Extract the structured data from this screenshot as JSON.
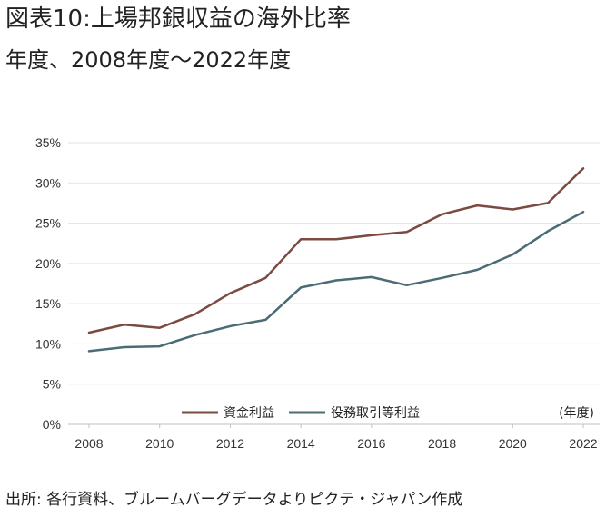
{
  "header": {
    "title": "図表10:上場邦銀収益の海外比率",
    "subtitle": "年度、2008年度～2022年度"
  },
  "footer": {
    "source": "出所: 各行資料、ブルームバーグデータよりピクテ・ジャパン作成"
  },
  "chart_data": {
    "type": "line",
    "x": [
      2008,
      2009,
      2010,
      2011,
      2012,
      2013,
      2014,
      2015,
      2016,
      2017,
      2018,
      2019,
      2020,
      2021,
      2022
    ],
    "x_tick_labels": [
      "2008",
      "2010",
      "2012",
      "2014",
      "2016",
      "2018",
      "2020",
      "2022"
    ],
    "y_tick_labels": [
      "0%",
      "5%",
      "10%",
      "15%",
      "20%",
      "25%",
      "30%",
      "35%"
    ],
    "ylim": [
      0,
      35
    ],
    "unit_label": "(年度)",
    "grid": true,
    "legend_position": "bottom-center",
    "series": [
      {
        "name": "資金利益",
        "color": "#7b4a40",
        "values": [
          11.4,
          12.4,
          12.0,
          13.7,
          16.3,
          18.2,
          23.0,
          23.0,
          23.5,
          23.9,
          26.1,
          27.2,
          26.7,
          27.5,
          31.8
        ]
      },
      {
        "name": "役務取引等利益",
        "color": "#4a6c74",
        "values": [
          9.1,
          9.6,
          9.7,
          11.1,
          12.2,
          13.0,
          17.0,
          17.9,
          18.3,
          17.3,
          18.2,
          19.2,
          21.1,
          24.0,
          26.4
        ]
      }
    ]
  }
}
